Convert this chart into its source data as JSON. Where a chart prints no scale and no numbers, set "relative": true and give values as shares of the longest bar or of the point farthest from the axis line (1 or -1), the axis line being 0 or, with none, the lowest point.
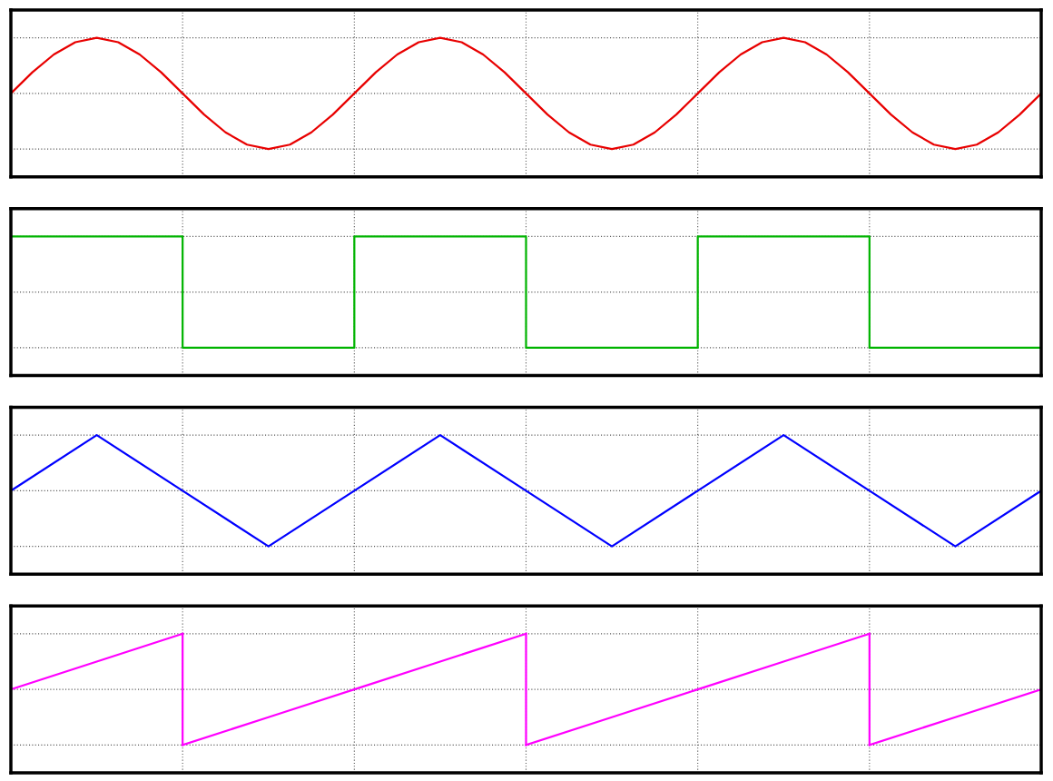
{
  "chart_data": [
    {
      "type": "line",
      "relative": true,
      "grid": true,
      "categories": [
        null,
        null,
        null,
        null,
        null,
        null,
        null,
        null,
        null,
        null,
        null,
        null,
        null,
        null,
        null,
        null,
        null,
        null,
        null,
        null,
        null,
        null,
        null,
        null,
        null,
        null,
        null,
        null,
        null,
        null,
        null,
        null,
        null,
        null,
        null,
        null,
        null,
        null,
        null,
        null,
        null,
        null,
        null,
        null,
        null,
        null,
        null,
        null,
        null
      ],
      "series": [
        {
          "color": "#e80000",
          "values": [
            0.5,
            0.69,
            0.85,
            0.96,
            1,
            0.96,
            0.85,
            0.69,
            0.5,
            0.31,
            0.15,
            0.04,
            0,
            0.04,
            0.15,
            0.31,
            0.5,
            0.69,
            0.85,
            0.96,
            1,
            0.96,
            0.85,
            0.69,
            0.5,
            0.31,
            0.15,
            0.04,
            0,
            0.04,
            0.15,
            0.31,
            0.5,
            0.69,
            0.85,
            0.96,
            1,
            0.96,
            0.85,
            0.69,
            0.5,
            0.31,
            0.15,
            0.04,
            0,
            0.04,
            0.15,
            0.31,
            0.5
          ]
        }
      ]
    },
    {
      "type": "step",
      "relative": true,
      "grid": true,
      "categories": [
        null,
        null,
        null,
        null,
        null,
        null,
        null
      ],
      "series": [
        {
          "color": "#00b400",
          "values": [
            1,
            0,
            1,
            0,
            1,
            0,
            0
          ]
        }
      ]
    },
    {
      "type": "line",
      "relative": true,
      "grid": true,
      "categories": [
        null,
        null,
        null,
        null,
        null,
        null,
        null,
        null,
        null,
        null,
        null,
        null,
        null
      ],
      "series": [
        {
          "color": "#0000ff",
          "values": [
            0.5,
            1,
            0.5,
            0,
            0.5,
            1,
            0.5,
            0,
            0.5,
            1,
            0.5,
            0,
            0.5
          ]
        }
      ]
    },
    {
      "type": "line",
      "relative": true,
      "grid": true,
      "categories": [
        null,
        null,
        null,
        null,
        null,
        null,
        null,
        null,
        null,
        null,
        null,
        null,
        null
      ],
      "series": [
        {
          "color": "#ff00ff",
          "values": [
            0.5,
            0.75,
            1,
            null,
            null,
            null,
            null,
            null,
            null,
            null,
            null,
            null,
            null
          ]
        },
        {
          "color": "#ff00ff",
          "values": [
            null,
            null,
            0,
            0.25,
            0.5,
            0.75,
            1,
            null,
            null,
            null,
            null,
            null,
            null
          ]
        },
        {
          "color": "#ff00ff",
          "values": [
            null,
            null,
            null,
            null,
            null,
            null,
            0,
            0.25,
            0.5,
            0.75,
            1,
            null,
            null
          ]
        },
        {
          "color": "#ff00ff",
          "values": [
            null,
            null,
            null,
            null,
            null,
            null,
            null,
            null,
            null,
            null,
            0,
            0.25,
            0.5
          ]
        }
      ]
    }
  ]
}
